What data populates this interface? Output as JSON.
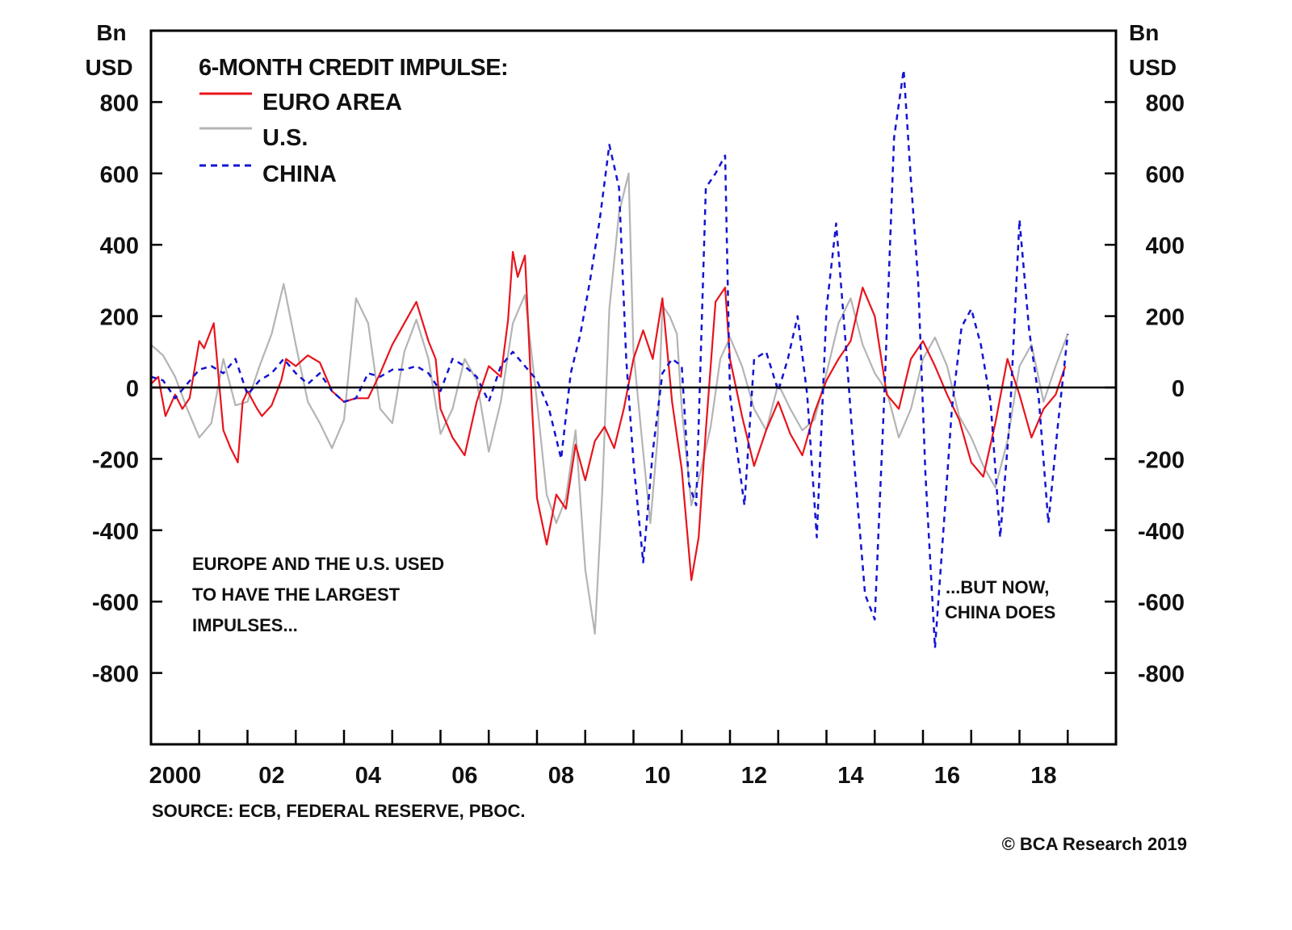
{
  "chart_data": {
    "type": "line",
    "title": "6-MONTH CREDIT IMPULSE:",
    "xlabel": "",
    "ylabel_left": [
      "Bn",
      "USD"
    ],
    "ylabel_right": [
      "Bn",
      "USD"
    ],
    "xlim": [
      2000,
      2020
    ],
    "ylim": [
      -1000,
      1000
    ],
    "yticks": [
      800,
      600,
      400,
      200,
      0,
      -200,
      -400,
      -600,
      -800
    ],
    "ytick_labels": [
      "800",
      "600",
      "400",
      "200",
      "0",
      "-200",
      "-400",
      "-600",
      "-800"
    ],
    "xtick_years": [
      2001,
      2002,
      2003,
      2004,
      2005,
      2006,
      2007,
      2008,
      2009,
      2010,
      2011,
      2012,
      2013,
      2014,
      2015,
      2016,
      2017,
      2018,
      2019
    ],
    "xtick_labels": [
      {
        "label": "2000",
        "year": 2000.5
      },
      {
        "label": "02",
        "year": 2002.5
      },
      {
        "label": "04",
        "year": 2004.5
      },
      {
        "label": "06",
        "year": 2006.5
      },
      {
        "label": "08",
        "year": 2008.5
      },
      {
        "label": "10",
        "year": 2010.5
      },
      {
        "label": "12",
        "year": 2012.5
      },
      {
        "label": "14",
        "year": 2014.5
      },
      {
        "label": "16",
        "year": 2016.5
      },
      {
        "label": "18",
        "year": 2018.5
      }
    ],
    "zero_line": true,
    "grid": false,
    "legend_position": "top-left",
    "series": [
      {
        "name": "EURO AREA",
        "color": "#e8141c",
        "style": "solid",
        "x": [
          2000.0,
          2000.15,
          2000.3,
          2000.5,
          2000.65,
          2000.8,
          2001.0,
          2001.1,
          2001.3,
          2001.5,
          2001.65,
          2001.8,
          2001.9,
          2002.0,
          2002.2,
          2002.3,
          2002.5,
          2002.7,
          2002.8,
          2003.0,
          2003.25,
          2003.5,
          2003.75,
          2004.0,
          2004.25,
          2004.5,
          2004.75,
          2005.0,
          2005.25,
          2005.5,
          2005.75,
          2005.9,
          2006.0,
          2006.25,
          2006.5,
          2006.75,
          2007.0,
          2007.25,
          2007.4,
          2007.5,
          2007.6,
          2007.75,
          2007.9,
          2008.0,
          2008.2,
          2008.4,
          2008.6,
          2008.8,
          2009.0,
          2009.2,
          2009.4,
          2009.6,
          2009.8,
          2010.0,
          2010.2,
          2010.4,
          2010.6,
          2010.8,
          2011.0,
          2011.2,
          2011.35,
          2011.5,
          2011.7,
          2011.9,
          2012.0,
          2012.25,
          2012.5,
          2012.75,
          2013.0,
          2013.25,
          2013.5,
          2013.75,
          2014.0,
          2014.25,
          2014.5,
          2014.75,
          2015.0,
          2015.25,
          2015.5,
          2015.75,
          2016.0,
          2016.25,
          2016.5,
          2016.75,
          2017.0,
          2017.25,
          2017.5,
          2017.75,
          2018.0,
          2018.25,
          2018.5,
          2018.75,
          2018.95
        ],
        "values": [
          10,
          30,
          -80,
          -20,
          -60,
          -30,
          130,
          110,
          180,
          -120,
          -170,
          -210,
          -40,
          -10,
          -60,
          -80,
          -50,
          20,
          80,
          60,
          90,
          70,
          -10,
          -40,
          -30,
          -30,
          40,
          120,
          180,
          240,
          130,
          80,
          -60,
          -140,
          -190,
          -40,
          60,
          30,
          190,
          380,
          310,
          370,
          -60,
          -310,
          -440,
          -300,
          -340,
          -160,
          -260,
          -150,
          -110,
          -170,
          -60,
          80,
          160,
          80,
          250,
          -40,
          -230,
          -540,
          -420,
          -120,
          240,
          280,
          80,
          -80,
          -220,
          -120,
          -40,
          -130,
          -190,
          -70,
          20,
          80,
          130,
          280,
          200,
          -20,
          -60,
          80,
          130,
          60,
          -20,
          -90,
          -210,
          -250,
          -100,
          80,
          -20,
          -140,
          -60,
          -20,
          60
        ]
      },
      {
        "name": "U.S.",
        "color": "#b4b4b4",
        "style": "solid",
        "x": [
          2000.0,
          2000.25,
          2000.5,
          2000.75,
          2001.0,
          2001.25,
          2001.5,
          2001.75,
          2002.0,
          2002.25,
          2002.5,
          2002.75,
          2003.0,
          2003.25,
          2003.5,
          2003.75,
          2004.0,
          2004.25,
          2004.5,
          2004.75,
          2005.0,
          2005.25,
          2005.5,
          2005.75,
          2006.0,
          2006.25,
          2006.5,
          2006.75,
          2007.0,
          2007.25,
          2007.5,
          2007.75,
          2008.0,
          2008.2,
          2008.4,
          2008.6,
          2008.8,
          2009.0,
          2009.2,
          2009.35,
          2009.5,
          2009.7,
          2009.9,
          2010.0,
          2010.2,
          2010.35,
          2010.5,
          2010.6,
          2010.75,
          2010.9,
          2011.0,
          2011.2,
          2011.4,
          2011.6,
          2011.8,
          2012.0,
          2012.25,
          2012.5,
          2012.75,
          2013.0,
          2013.25,
          2013.5,
          2013.75,
          2014.0,
          2014.25,
          2014.5,
          2014.75,
          2015.0,
          2015.25,
          2015.5,
          2015.75,
          2016.0,
          2016.25,
          2016.5,
          2016.75,
          2017.0,
          2017.25,
          2017.5,
          2017.75,
          2018.0,
          2018.25,
          2018.5,
          2018.75,
          2019.0
        ],
        "values": [
          120,
          90,
          30,
          -60,
          -140,
          -100,
          80,
          -50,
          -40,
          60,
          150,
          290,
          120,
          -40,
          -100,
          -170,
          -90,
          250,
          180,
          -60,
          -100,
          100,
          190,
          80,
          -130,
          -60,
          80,
          20,
          -180,
          -40,
          180,
          260,
          -40,
          -300,
          -380,
          -310,
          -120,
          -510,
          -690,
          -300,
          220,
          490,
          600,
          100,
          -180,
          -380,
          -140,
          230,
          200,
          150,
          -60,
          -330,
          -230,
          -110,
          80,
          140,
          60,
          -60,
          -120,
          10,
          -60,
          -120,
          -90,
          40,
          180,
          250,
          120,
          40,
          -10,
          -140,
          -60,
          80,
          140,
          60,
          -80,
          -140,
          -220,
          -280,
          -150,
          60,
          120,
          -40,
          60,
          150
        ]
      },
      {
        "name": "CHINA",
        "color": "#1414d2",
        "style": "dashed",
        "x": [
          2000.0,
          2000.25,
          2000.5,
          2000.75,
          2001.0,
          2001.25,
          2001.5,
          2001.75,
          2002.0,
          2002.25,
          2002.5,
          2002.75,
          2003.0,
          2003.25,
          2003.5,
          2003.75,
          2004.0,
          2004.25,
          2004.5,
          2004.75,
          2005.0,
          2005.25,
          2005.5,
          2005.75,
          2006.0,
          2006.25,
          2006.5,
          2006.75,
          2007.0,
          2007.25,
          2007.5,
          2007.75,
          2008.0,
          2008.25,
          2008.5,
          2008.7,
          2008.9,
          2009.1,
          2009.3,
          2009.5,
          2009.7,
          2009.85,
          2010.0,
          2010.2,
          2010.4,
          2010.6,
          2010.8,
          2011.0,
          2011.15,
          2011.3,
          2011.5,
          2011.7,
          2011.9,
          2012.0,
          2012.15,
          2012.3,
          2012.5,
          2012.75,
          2013.0,
          2013.2,
          2013.4,
          2013.6,
          2013.8,
          2014.0,
          2014.2,
          2014.4,
          2014.6,
          2014.8,
          2015.0,
          2015.2,
          2015.4,
          2015.6,
          2015.75,
          2015.9,
          2016.05,
          2016.25,
          2016.45,
          2016.6,
          2016.8,
          2017.0,
          2017.2,
          2017.4,
          2017.6,
          2017.8,
          2018.0,
          2018.2,
          2018.4,
          2018.6,
          2018.8,
          2019.0
        ],
        "values": [
          30,
          20,
          -30,
          10,
          50,
          60,
          40,
          80,
          -20,
          20,
          40,
          80,
          40,
          10,
          40,
          -10,
          -40,
          -30,
          40,
          30,
          50,
          50,
          60,
          40,
          -10,
          80,
          60,
          30,
          -40,
          60,
          100,
          60,
          20,
          -60,
          -200,
          40,
          150,
          300,
          470,
          680,
          560,
          80,
          -210,
          -490,
          -180,
          40,
          80,
          60,
          -270,
          -330,
          560,
          600,
          650,
          -20,
          -180,
          -330,
          80,
          100,
          -10,
          80,
          200,
          -20,
          -420,
          220,
          460,
          120,
          -250,
          -580,
          -650,
          -20,
          700,
          890,
          580,
          300,
          -240,
          -730,
          -350,
          -60,
          170,
          220,
          120,
          -40,
          -420,
          -90,
          470,
          160,
          -30,
          -380,
          -100,
          150
        ]
      }
    ],
    "annotations": [
      {
        "lines": [
          "EUROPE AND THE U.S. USED",
          "TO HAVE THE LARGEST",
          "IMPULSES..."
        ],
        "position": "bottom-left"
      },
      {
        "lines": [
          "...BUT NOW,",
          "CHINA DOES"
        ],
        "position": "bottom-right"
      }
    ]
  },
  "footer": {
    "source": "SOURCE: ECB, FEDERAL RESERVE, PBOC.",
    "copyright": "© BCA Research 2019"
  }
}
